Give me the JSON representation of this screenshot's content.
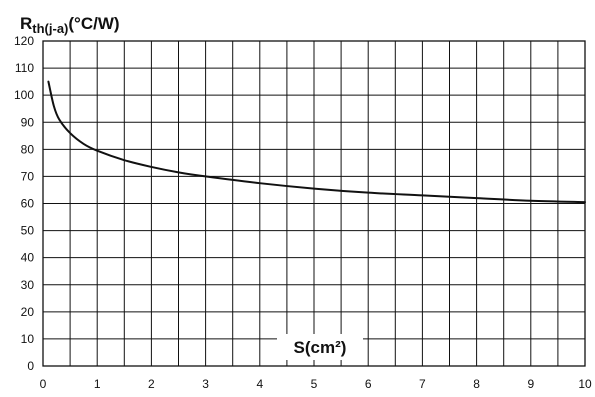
{
  "chart_data": {
    "type": "line",
    "ylabel_main": "R",
    "ylabel_sub": "th(j-a)",
    "ylabel_unit": "(°C/W)",
    "xlabel": "S(cm²)",
    "xlim": [
      0,
      10
    ],
    "ylim": [
      0,
      120
    ],
    "x_ticks": [
      "0",
      "1",
      "2",
      "3",
      "4",
      "5",
      "6",
      "7",
      "8",
      "9",
      "10"
    ],
    "y_ticks": [
      "0",
      "10",
      "20",
      "30",
      "40",
      "50",
      "60",
      "70",
      "80",
      "90",
      "100",
      "110",
      "120"
    ],
    "grid": true,
    "series": [
      {
        "x": [
          0.1,
          0.2,
          0.3,
          0.5,
          0.75,
          1,
          1.5,
          2,
          2.5,
          3,
          4,
          5,
          6,
          7,
          8,
          9,
          10
        ],
        "y": [
          105,
          96,
          91,
          86,
          82,
          79.5,
          76,
          73.5,
          71.5,
          70,
          67.5,
          65.5,
          64,
          63,
          62,
          61,
          60.5
        ]
      }
    ],
    "colors": {
      "line": "#111111",
      "grid": "#111111",
      "background": "#ffffff"
    }
  }
}
